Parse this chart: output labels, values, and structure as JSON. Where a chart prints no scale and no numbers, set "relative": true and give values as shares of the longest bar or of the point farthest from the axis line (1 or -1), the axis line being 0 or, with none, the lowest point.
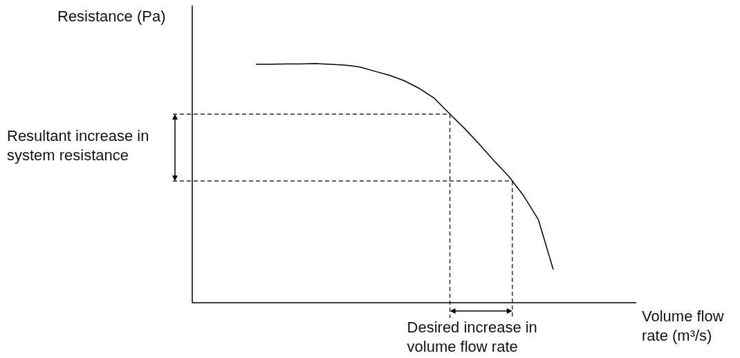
{
  "chart_data": {
    "type": "line",
    "relative": true,
    "categories": [
      null,
      null,
      null,
      null,
      null,
      null,
      null,
      null,
      null,
      null,
      null,
      null,
      null,
      null,
      null,
      null,
      null,
      null,
      null,
      null,
      null
    ],
    "series": [
      {
        "color": "#000000",
        "values": [
          0.997,
          0.997,
          0.999,
          0.999,
          1,
          0.997,
          0.994,
          0.986,
          0.968,
          0.951,
          0.928,
          0.896,
          0.855,
          0.792,
          0.731,
          0.665,
          0.595,
          0.529,
          0.448,
          0.347,
          0.139
        ]
      }
    ],
    "ref_lines": [
      {
        "axis": "y",
        "value": 0.789,
        "line_style": "dashed",
        "color": "#000000"
      },
      {
        "axis": "y",
        "value": 0.509,
        "line_style": "dashed",
        "color": "#000000"
      }
    ],
    "annotations": [
      "Resultant increase in system resistance",
      "Desired increase in volume flow rate",
      "Resistance (Pa)",
      "Volume flow rate (m³/s)"
    ],
    "grid": false,
    "legend": false,
    "marker": "none",
    "line_style": "solid",
    "tick_labels": false
  }
}
